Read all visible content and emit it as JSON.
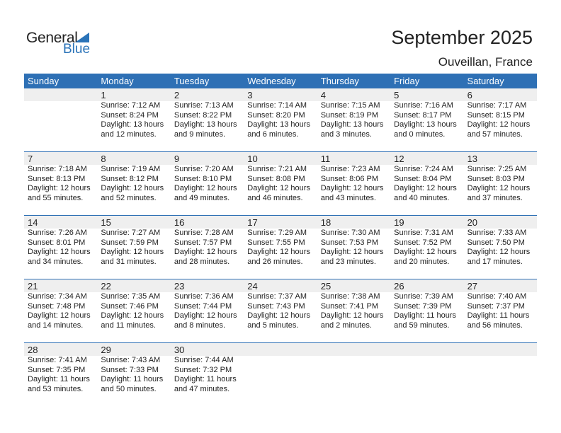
{
  "logo": {
    "general": "General",
    "blue": "Blue"
  },
  "title": "September 2025",
  "location": "Ouveillan, France",
  "weekdays": [
    "Sunday",
    "Monday",
    "Tuesday",
    "Wednesday",
    "Thursday",
    "Friday",
    "Saturday"
  ],
  "colors": {
    "header": "#2e70b5",
    "band": "#efefef"
  },
  "first_weekday": 1,
  "days": [
    {
      "d": "1",
      "rise": "Sunrise: 7:12 AM",
      "set": "Sunset: 8:24 PM",
      "dl1": "Daylight: 13 hours",
      "dl2": "and 12 minutes."
    },
    {
      "d": "2",
      "rise": "Sunrise: 7:13 AM",
      "set": "Sunset: 8:22 PM",
      "dl1": "Daylight: 13 hours",
      "dl2": "and 9 minutes."
    },
    {
      "d": "3",
      "rise": "Sunrise: 7:14 AM",
      "set": "Sunset: 8:20 PM",
      "dl1": "Daylight: 13 hours",
      "dl2": "and 6 minutes."
    },
    {
      "d": "4",
      "rise": "Sunrise: 7:15 AM",
      "set": "Sunset: 8:19 PM",
      "dl1": "Daylight: 13 hours",
      "dl2": "and 3 minutes."
    },
    {
      "d": "5",
      "rise": "Sunrise: 7:16 AM",
      "set": "Sunset: 8:17 PM",
      "dl1": "Daylight: 13 hours",
      "dl2": "and 0 minutes."
    },
    {
      "d": "6",
      "rise": "Sunrise: 7:17 AM",
      "set": "Sunset: 8:15 PM",
      "dl1": "Daylight: 12 hours",
      "dl2": "and 57 minutes."
    },
    {
      "d": "7",
      "rise": "Sunrise: 7:18 AM",
      "set": "Sunset: 8:13 PM",
      "dl1": "Daylight: 12 hours",
      "dl2": "and 55 minutes."
    },
    {
      "d": "8",
      "rise": "Sunrise: 7:19 AM",
      "set": "Sunset: 8:12 PM",
      "dl1": "Daylight: 12 hours",
      "dl2": "and 52 minutes."
    },
    {
      "d": "9",
      "rise": "Sunrise: 7:20 AM",
      "set": "Sunset: 8:10 PM",
      "dl1": "Daylight: 12 hours",
      "dl2": "and 49 minutes."
    },
    {
      "d": "10",
      "rise": "Sunrise: 7:21 AM",
      "set": "Sunset: 8:08 PM",
      "dl1": "Daylight: 12 hours",
      "dl2": "and 46 minutes."
    },
    {
      "d": "11",
      "rise": "Sunrise: 7:23 AM",
      "set": "Sunset: 8:06 PM",
      "dl1": "Daylight: 12 hours",
      "dl2": "and 43 minutes."
    },
    {
      "d": "12",
      "rise": "Sunrise: 7:24 AM",
      "set": "Sunset: 8:04 PM",
      "dl1": "Daylight: 12 hours",
      "dl2": "and 40 minutes."
    },
    {
      "d": "13",
      "rise": "Sunrise: 7:25 AM",
      "set": "Sunset: 8:03 PM",
      "dl1": "Daylight: 12 hours",
      "dl2": "and 37 minutes."
    },
    {
      "d": "14",
      "rise": "Sunrise: 7:26 AM",
      "set": "Sunset: 8:01 PM",
      "dl1": "Daylight: 12 hours",
      "dl2": "and 34 minutes."
    },
    {
      "d": "15",
      "rise": "Sunrise: 7:27 AM",
      "set": "Sunset: 7:59 PM",
      "dl1": "Daylight: 12 hours",
      "dl2": "and 31 minutes."
    },
    {
      "d": "16",
      "rise": "Sunrise: 7:28 AM",
      "set": "Sunset: 7:57 PM",
      "dl1": "Daylight: 12 hours",
      "dl2": "and 28 minutes."
    },
    {
      "d": "17",
      "rise": "Sunrise: 7:29 AM",
      "set": "Sunset: 7:55 PM",
      "dl1": "Daylight: 12 hours",
      "dl2": "and 26 minutes."
    },
    {
      "d": "18",
      "rise": "Sunrise: 7:30 AM",
      "set": "Sunset: 7:53 PM",
      "dl1": "Daylight: 12 hours",
      "dl2": "and 23 minutes."
    },
    {
      "d": "19",
      "rise": "Sunrise: 7:31 AM",
      "set": "Sunset: 7:52 PM",
      "dl1": "Daylight: 12 hours",
      "dl2": "and 20 minutes."
    },
    {
      "d": "20",
      "rise": "Sunrise: 7:33 AM",
      "set": "Sunset: 7:50 PM",
      "dl1": "Daylight: 12 hours",
      "dl2": "and 17 minutes."
    },
    {
      "d": "21",
      "rise": "Sunrise: 7:34 AM",
      "set": "Sunset: 7:48 PM",
      "dl1": "Daylight: 12 hours",
      "dl2": "and 14 minutes."
    },
    {
      "d": "22",
      "rise": "Sunrise: 7:35 AM",
      "set": "Sunset: 7:46 PM",
      "dl1": "Daylight: 12 hours",
      "dl2": "and 11 minutes."
    },
    {
      "d": "23",
      "rise": "Sunrise: 7:36 AM",
      "set": "Sunset: 7:44 PM",
      "dl1": "Daylight: 12 hours",
      "dl2": "and 8 minutes."
    },
    {
      "d": "24",
      "rise": "Sunrise: 7:37 AM",
      "set": "Sunset: 7:43 PM",
      "dl1": "Daylight: 12 hours",
      "dl2": "and 5 minutes."
    },
    {
      "d": "25",
      "rise": "Sunrise: 7:38 AM",
      "set": "Sunset: 7:41 PM",
      "dl1": "Daylight: 12 hours",
      "dl2": "and 2 minutes."
    },
    {
      "d": "26",
      "rise": "Sunrise: 7:39 AM",
      "set": "Sunset: 7:39 PM",
      "dl1": "Daylight: 11 hours",
      "dl2": "and 59 minutes."
    },
    {
      "d": "27",
      "rise": "Sunrise: 7:40 AM",
      "set": "Sunset: 7:37 PM",
      "dl1": "Daylight: 11 hours",
      "dl2": "and 56 minutes."
    },
    {
      "d": "28",
      "rise": "Sunrise: 7:41 AM",
      "set": "Sunset: 7:35 PM",
      "dl1": "Daylight: 11 hours",
      "dl2": "and 53 minutes."
    },
    {
      "d": "29",
      "rise": "Sunrise: 7:43 AM",
      "set": "Sunset: 7:33 PM",
      "dl1": "Daylight: 11 hours",
      "dl2": "and 50 minutes."
    },
    {
      "d": "30",
      "rise": "Sunrise: 7:44 AM",
      "set": "Sunset: 7:32 PM",
      "dl1": "Daylight: 11 hours",
      "dl2": "and 47 minutes."
    }
  ]
}
